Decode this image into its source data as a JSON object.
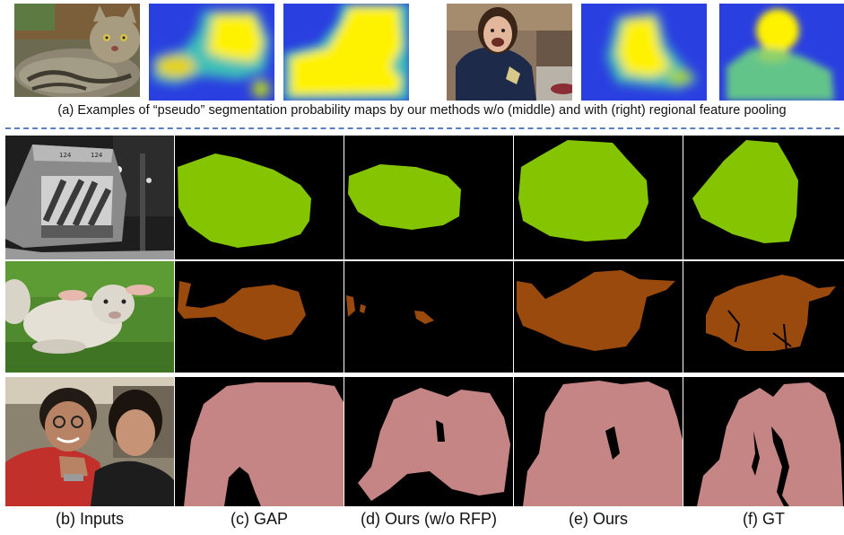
{
  "figure": {
    "caption_a": "(a) Examples of “pseudo” segmentation probability maps by our methods w/o (middle) and with (right) regional feature pooling",
    "column_labels": [
      "(b) Inputs",
      "(c) GAP",
      "(d) Ours (w/o RFP)",
      "(e) Ours",
      "(f) GT"
    ],
    "colors": {
      "train_mask": "#84c400",
      "sheep_mask": "#9a4a0c",
      "person_mask": "#c68585",
      "mask_background": "#000000",
      "heatmap_low": "#2a3fe0",
      "heatmap_mid": "#3cc0b8",
      "heatmap_high": "#fff200",
      "divider": "#5b7fc0"
    }
  }
}
